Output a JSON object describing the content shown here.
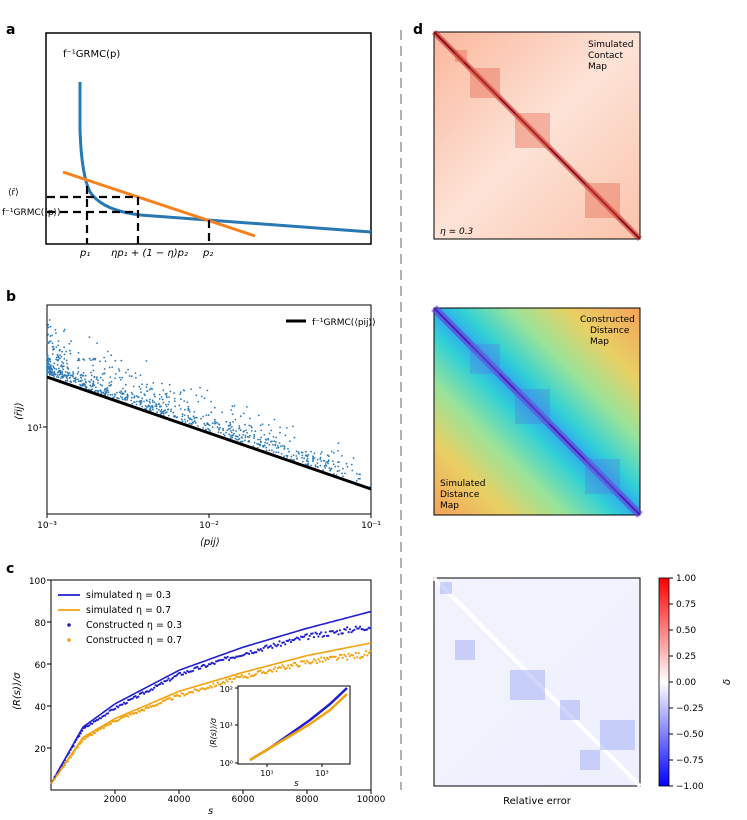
{
  "panel_labels": {
    "a": "a",
    "b": "b",
    "c": "c",
    "d": "d"
  },
  "panel_a": {
    "curve_label": "f⁻¹GRMC(p)",
    "y_labels": [
      "⟨r̄⟩",
      "f⁻¹GRMC(⟨p⟩)"
    ],
    "x_labels": [
      "p₁",
      "ηp₁ + (1 − η)p₂",
      "p₂"
    ],
    "colors": {
      "curve": "#2878b4",
      "line": "#f5821f"
    }
  },
  "panel_b": {
    "legend": "f⁻¹GRMC(⟨pij⟩)",
    "ylabel": "⟨r̄ij⟩",
    "xlabel": "⟨pij⟩",
    "xticks": [
      "10⁻³",
      "10⁻²",
      "10⁻¹"
    ],
    "yticks": [
      "10¹"
    ],
    "colors": {
      "scatter": "#2b7bba",
      "line": "#000000"
    }
  },
  "chart_data": [
    {
      "type": "scatter",
      "title": "",
      "xlabel": "⟨pij⟩",
      "ylabel": "⟨r̄ij⟩",
      "xscale": "log",
      "yscale": "log",
      "xlim": [
        0.001,
        0.1
      ],
      "ylim": [
        5,
        45
      ],
      "series": [
        {
          "name": "f⁻¹GRMC(⟨pij⟩)",
          "kind": "line",
          "x": [
            0.001,
            0.1
          ],
          "y": [
            17.5,
            6.2
          ]
        },
        {
          "name": "simulated",
          "kind": "scatter",
          "x_range": [
            0.001,
            0.1
          ],
          "y_range": [
            6.5,
            22
          ]
        }
      ]
    },
    {
      "type": "line",
      "title": "",
      "xlabel": "s",
      "ylabel": "⟨R(s)⟩/σ",
      "xlim": [
        0,
        10000
      ],
      "ylim": [
        0,
        100
      ],
      "xticks": [
        2000,
        4000,
        6000,
        8000,
        10000
      ],
      "yticks": [
        20,
        40,
        60,
        80,
        100
      ],
      "series": [
        {
          "name": "simulated η = 0.3",
          "kind": "line",
          "color": "#1f1fd0",
          "x": [
            0,
            1000,
            2000,
            4000,
            6000,
            8000,
            10000
          ],
          "y": [
            3,
            30,
            41,
            57,
            68,
            77,
            85
          ]
        },
        {
          "name": "simulated η = 0.7",
          "kind": "line",
          "color": "#f2a20c",
          "x": [
            0,
            1000,
            2000,
            4000,
            6000,
            8000,
            10000
          ],
          "y": [
            3,
            25,
            34,
            47,
            56,
            64,
            70
          ]
        },
        {
          "name": "Constructed η = 0.3",
          "kind": "scatter",
          "color": "#1f1fd0",
          "x": [
            0,
            1000,
            2000,
            4000,
            6000,
            8000,
            10000
          ],
          "y": [
            3,
            29,
            39,
            55,
            65,
            73,
            78
          ]
        },
        {
          "name": "Constructed η = 0.7",
          "kind": "scatter",
          "color": "#f2a20c",
          "x": [
            0,
            1000,
            2000,
            4000,
            6000,
            8000,
            10000
          ],
          "y": [
            3,
            24,
            33,
            45,
            54,
            61,
            65
          ]
        }
      ]
    }
  ],
  "panel_c": {
    "xticks": [
      "2000",
      "4000",
      "6000",
      "8000",
      "10000"
    ],
    "yticks": [
      "20",
      "40",
      "60",
      "80",
      "100"
    ],
    "xlabel": "s",
    "ylabel": "⟨R(s)⟩/σ",
    "legend": [
      "simulated η = 0.3",
      "simulated η = 0.7",
      "Constructed η = 0.3",
      "Constructed η = 0.7"
    ],
    "inset": {
      "ylabel": "⟨R(s)⟩/σ",
      "xlabel": "s",
      "xticks": [
        "10¹",
        "10³"
      ],
      "yticks": [
        "10⁰",
        "10¹",
        "10²"
      ]
    }
  },
  "panel_d": {
    "contact_label": [
      "Simulated",
      "Contact",
      "Map"
    ],
    "eta_label": "η = 0.3",
    "constructed_label": [
      "Constructed",
      "Distance",
      "Map"
    ],
    "simulated_label": [
      "Simulated",
      "Distance",
      "Map"
    ],
    "error_label": "Relative error",
    "colorbar_label": "δ",
    "colorbar_ticks": [
      "1.00",
      "0.75",
      "0.50",
      "0.25",
      "0.00",
      "−0.25",
      "−0.50",
      "−0.75",
      "−1.00"
    ],
    "colorbar_values": [
      1.0,
      0.75,
      0.5,
      0.25,
      0.0,
      -0.25,
      -0.5,
      -0.75,
      -1.0
    ]
  }
}
